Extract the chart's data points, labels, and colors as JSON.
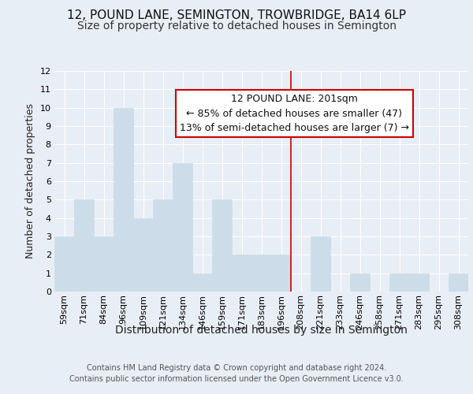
{
  "title": "12, POUND LANE, SEMINGTON, TROWBRIDGE, BA14 6LP",
  "subtitle": "Size of property relative to detached houses in Semington",
  "xlabel": "Distribution of detached houses by size in Semington",
  "ylabel": "Number of detached properties",
  "footer_line1": "Contains HM Land Registry data © Crown copyright and database right 2024.",
  "footer_line2": "Contains public sector information licensed under the Open Government Licence v3.0.",
  "categories": [
    "59sqm",
    "71sqm",
    "84sqm",
    "96sqm",
    "109sqm",
    "121sqm",
    "134sqm",
    "146sqm",
    "159sqm",
    "171sqm",
    "183sqm",
    "196sqm",
    "208sqm",
    "221sqm",
    "233sqm",
    "246sqm",
    "258sqm",
    "271sqm",
    "283sqm",
    "295sqm",
    "308sqm"
  ],
  "values": [
    3,
    5,
    3,
    10,
    4,
    5,
    7,
    1,
    5,
    2,
    2,
    2,
    0,
    3,
    0,
    1,
    0,
    1,
    1,
    0,
    1
  ],
  "bar_color": "#ccdce8",
  "bar_edge_color": "#ccdce8",
  "red_line_after_index": 11,
  "red_line_color": "#cc0000",
  "annotation_text_line1": "12 POUND LANE: 201sqm",
  "annotation_text_line2": "← 85% of detached houses are smaller (47)",
  "annotation_text_line3": "13% of semi-detached houses are larger (7) →",
  "annotation_box_facecolor": "#ffffff",
  "annotation_box_edgecolor": "#cc0000",
  "ylim": [
    0,
    12
  ],
  "yticks": [
    0,
    1,
    2,
    3,
    4,
    5,
    6,
    7,
    8,
    9,
    10,
    11,
    12
  ],
  "background_color": "#e8eef5",
  "grid_color": "#ffffff",
  "title_fontsize": 11,
  "subtitle_fontsize": 10,
  "ylabel_fontsize": 9,
  "tick_fontsize": 8,
  "xlabel_fontsize": 10,
  "annotation_fontsize": 9,
  "footer_fontsize": 7
}
